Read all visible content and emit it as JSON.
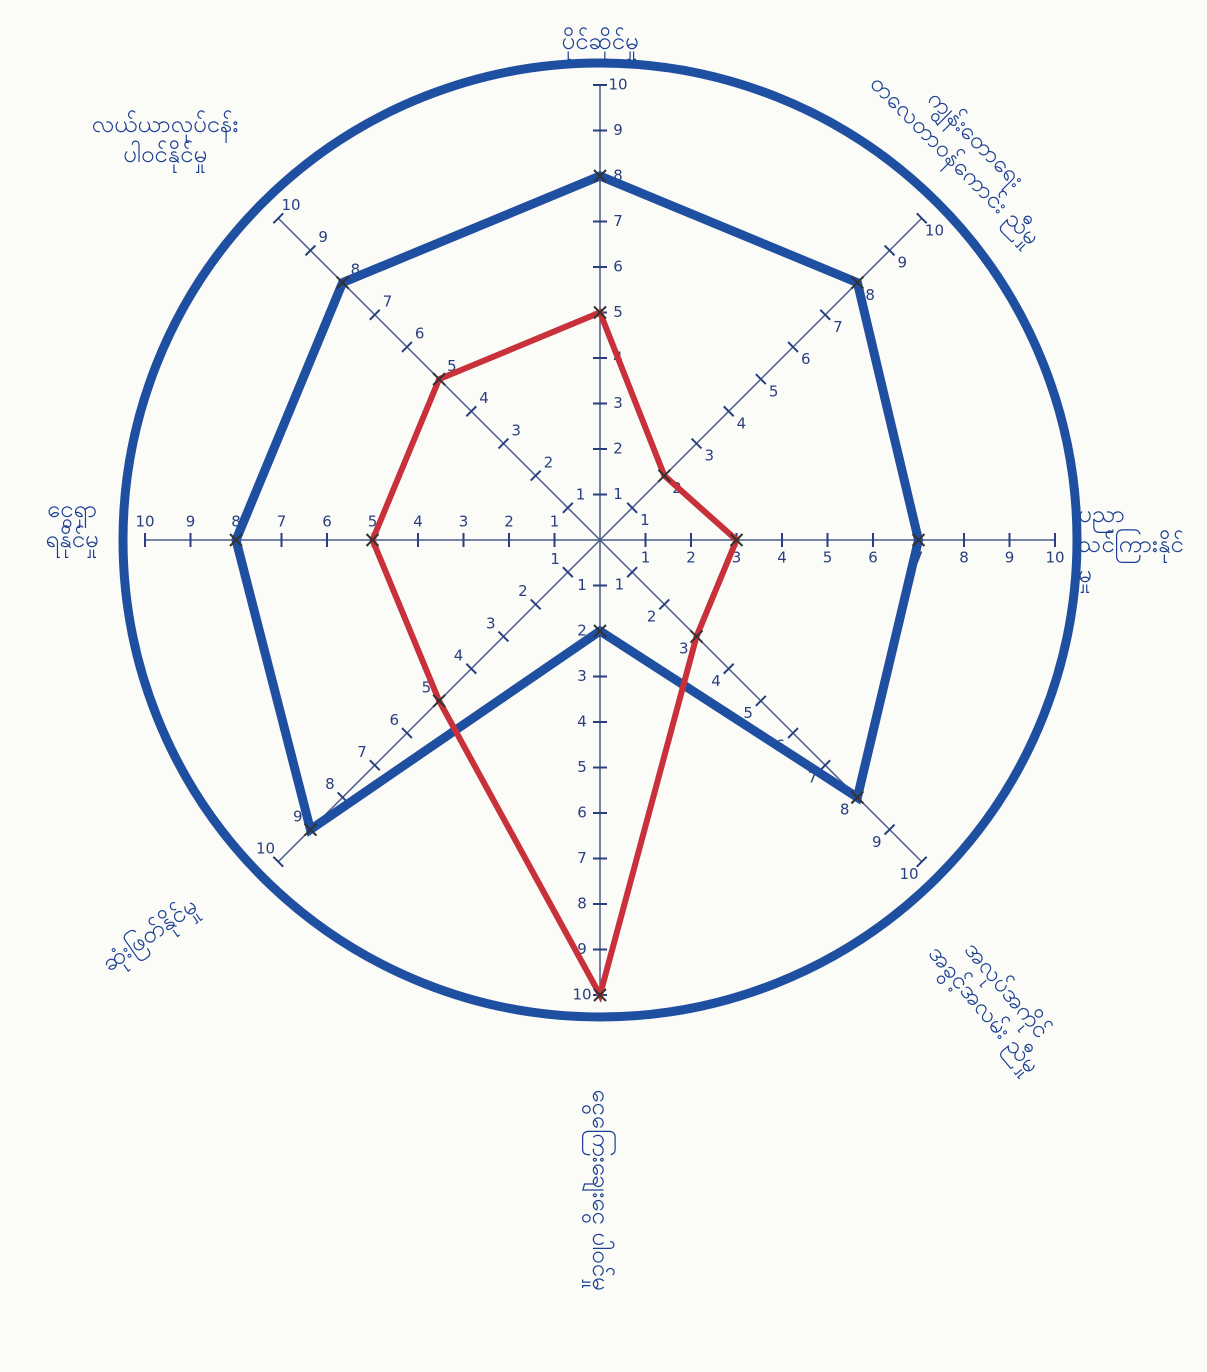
{
  "chart_data": {
    "type": "radar",
    "categories": [
      [
        "ပိုင်ဆိုင်မှု"
      ],
      [
        "ကျွန်းတောရေး",
        "တလေတာဝန်ကောင်း ညီမှု"
      ],
      [
        "ပညာ",
        "သင်ကြားနိုင်",
        "မှု"
      ],
      [
        "အလုပ်အကိုင်",
        "အခွင့်အလမ်း ညီမှု"
      ],
      [
        "ငွေကြေးချေးငွေ ပါဝင်မှု"
      ],
      [
        "ဆုံးဖြတ်နိုင်မှု"
      ],
      [
        "ငွေရှာ",
        "ရနိုင်မှု"
      ],
      [
        "လယ်ယာလုပ်ငန်း",
        "ပါဝင်နိုင်မှု"
      ]
    ],
    "series": [
      {
        "color": "#1f4fa0",
        "values": [
          8,
          8,
          7,
          8,
          2,
          9,
          8,
          8
        ]
      },
      {
        "color": "#c8303a",
        "values": [
          5,
          2,
          3,
          3,
          10,
          5,
          5,
          5
        ]
      }
    ],
    "rlim": [
      0,
      10
    ],
    "rticks": [
      1,
      2,
      3,
      4,
      5,
      6,
      7,
      8,
      9,
      10
    ]
  }
}
